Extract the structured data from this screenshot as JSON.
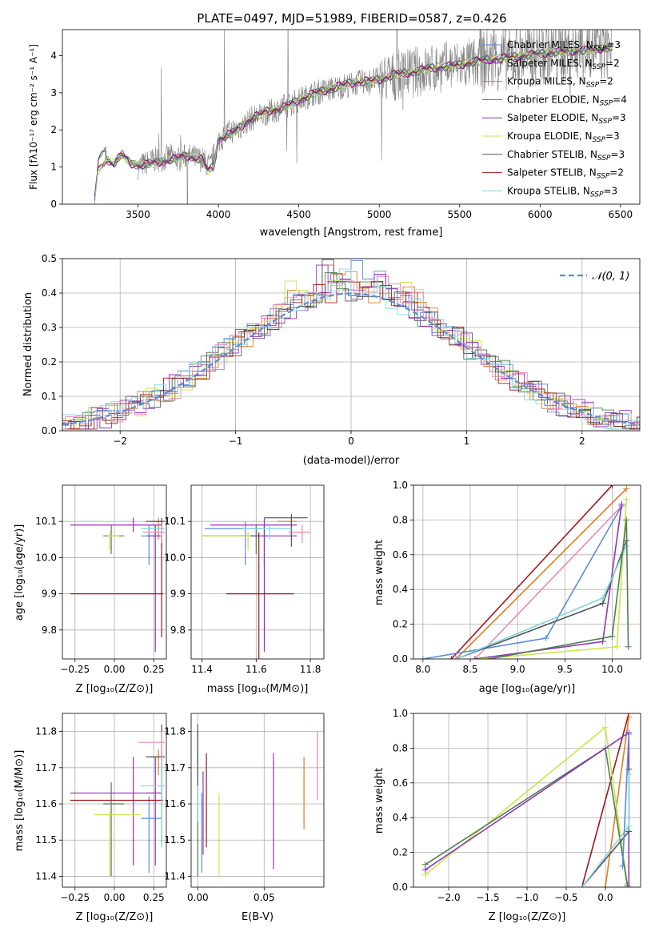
{
  "colors": {
    "chabrier_miles": "#5b8bd8",
    "salpeter_miles": "#9b2db5",
    "kroupa_miles": "#e07b20",
    "chabrier_elodie": "#4f7f4f",
    "salpeter_elodie": "#8e36b8",
    "kroupa_elodie": "#c8e64a",
    "chabrier_stelib": "#555555",
    "salpeter_stelib": "#a0161b",
    "kroupa_stelib": "#7fd5e0",
    "pink": "#e88ab8",
    "spectrum": "#808080",
    "gauss": "#5b8bd8"
  },
  "chart_data": [
    {
      "id": "spectrum",
      "type": "line",
      "title": "PLATE=0497, MJD=51989, FIBERID=0587, z=0.426",
      "xlabel": "wavelength [Angstrom, rest frame]",
      "ylabel": "Flux [f$_\\lambda$10$^{-17}$ erg cm$^{-2}$ s$^{-1}$ A$^{-1}$]",
      "xlim": [
        3030,
        6620
      ],
      "ylim": [
        0,
        4.7
      ],
      "xticks": [
        3500,
        4000,
        4500,
        5000,
        5500,
        6000,
        6500
      ],
      "yticks": [
        0,
        1,
        2,
        3,
        4
      ],
      "grid": false,
      "legend_position": "right",
      "legend": [
        {
          "label": "Chabrier MILES, N",
          "sub": "SSP",
          "tail": "=3",
          "color": "chabrier_miles"
        },
        {
          "label": "Salpeter MILES, N",
          "sub": "SSP",
          "tail": "=2",
          "color": "salpeter_miles"
        },
        {
          "label": "Kroupa MILES, N",
          "sub": "SSP",
          "tail": "=2",
          "color": "kroupa_miles"
        },
        {
          "label": "Chabrier ELODIE, N",
          "sub": "SSP",
          "tail": "=4",
          "color": "chabrier_elodie"
        },
        {
          "label": "Salpeter ELODIE, N",
          "sub": "SSP",
          "tail": "=3",
          "color": "salpeter_elodie"
        },
        {
          "label": "Kroupa ELODIE, N",
          "sub": "SSP",
          "tail": "=3",
          "color": "kroupa_elodie"
        },
        {
          "label": "Chabrier STELIB, N",
          "sub": "SSP",
          "tail": "=3",
          "color": "chabrier_stelib"
        },
        {
          "label": "Salpeter STELIB, N",
          "sub": "SSP",
          "tail": "=2",
          "color": "salpeter_stelib"
        },
        {
          "label": "Kroupa STELIB, N",
          "sub": "SSP",
          "tail": "=3",
          "color": "kroupa_stelib"
        }
      ],
      "model_wave": [
        3230,
        3250,
        3300,
        3350,
        3400,
        3450,
        3500,
        3600,
        3700,
        3800,
        3900,
        3935,
        3970,
        4000,
        4100,
        4200,
        4300,
        4400,
        4500,
        4600,
        4700,
        4800,
        4900,
        5000,
        5100,
        5200,
        5300,
        5400,
        5500,
        5600,
        5700,
        5800,
        5900,
        6000,
        6100,
        6200,
        6300,
        6400,
        6450
      ],
      "model_flux": [
        0.1,
        0.9,
        1.2,
        1.1,
        1.35,
        1.1,
        1.05,
        1.1,
        1.2,
        1.3,
        1.2,
        0.9,
        1.0,
        1.75,
        1.95,
        2.3,
        2.5,
        2.6,
        2.8,
        3.0,
        3.1,
        3.25,
        3.3,
        3.35,
        3.5,
        3.55,
        3.65,
        3.7,
        3.75,
        3.85,
        3.9,
        3.95,
        4.0,
        4.05,
        4.1,
        4.12,
        4.15,
        4.2,
        4.25
      ],
      "data_wave": [
        3500,
        3550,
        3600,
        3650,
        3700,
        3750,
        3800,
        3850,
        3900,
        3950,
        4000,
        4050,
        4100,
        4150,
        4200,
        4300,
        4400,
        4500,
        4600,
        4700,
        4800,
        4900,
        5000,
        5100,
        5200,
        5300,
        5400,
        5500,
        5600,
        5700,
        5800,
        5900,
        6000,
        6100,
        6200,
        6300,
        6400,
        6450
      ],
      "data_flux": [
        1.0,
        1.1,
        1.2,
        1.2,
        1.3,
        1.2,
        1.3,
        1.25,
        1.2,
        1.0,
        1.7,
        1.9,
        2.0,
        2.1,
        2.3,
        2.45,
        2.6,
        2.8,
        3.0,
        3.1,
        3.2,
        3.3,
        3.35,
        3.45,
        3.55,
        3.6,
        3.7,
        3.75,
        3.8,
        3.9,
        3.95,
        4.0,
        4.05,
        4.1,
        4.15,
        4.15,
        4.2,
        4.25
      ]
    },
    {
      "id": "residuals",
      "type": "histogram",
      "xlabel": "(data-model)/error",
      "ylabel": "Normed distribution",
      "xlim": [
        -2.5,
        2.5
      ],
      "ylim": [
        0,
        0.5
      ],
      "xticks": [
        -2,
        -1,
        0,
        1,
        2
      ],
      "yticks": [
        0.0,
        0.1,
        0.2,
        0.3,
        0.4,
        0.5
      ],
      "grid": true,
      "legend_position": "top-right",
      "legend": [
        "N(0,1)"
      ],
      "gauss_curve": {
        "mu": 0,
        "sigma": 1
      }
    },
    {
      "id": "age_vs_Z",
      "type": "errorbar",
      "xlabel": "Z [log10(Z/Zsun)]",
      "ylabel": "age  [log10(age/yr)]",
      "xlim": [
        -0.33,
        0.33
      ],
      "ylim": [
        9.72,
        10.2
      ],
      "xticks": [
        -0.25,
        0.0,
        0.25
      ],
      "yticks": [
        9.8,
        9.9,
        10.0,
        10.1
      ],
      "grid": true
    },
    {
      "id": "age_vs_mass",
      "type": "errorbar",
      "xlabel": "mass [log10(M/Msun)]",
      "ylabel": "",
      "xlim": [
        11.36,
        11.85
      ],
      "ylim": [
        9.72,
        10.2
      ],
      "xticks": [
        11.4,
        11.6,
        11.8
      ],
      "yticks": [
        9.8,
        9.9,
        10.0,
        10.1
      ],
      "grid": true
    },
    {
      "id": "weight_vs_age",
      "type": "line",
      "xlabel": "age  [log10(age/yr)]",
      "ylabel": "mass weight",
      "xlim": [
        7.9,
        10.3
      ],
      "ylim": [
        0,
        1
      ],
      "xticks": [
        8.0,
        8.5,
        9.0,
        9.5,
        10.0
      ],
      "yticks": [
        0.0,
        0.2,
        0.4,
        0.6,
        0.8,
        1.0
      ],
      "grid": true
    },
    {
      "id": "mass_vs_Z",
      "type": "errorbar",
      "xlabel": "Z [log10(Z/Zsun)]",
      "ylabel": "mass [log10(M/Msun)]",
      "xlim": [
        -0.33,
        0.33
      ],
      "ylim": [
        11.37,
        11.85
      ],
      "xticks": [
        -0.25,
        0.0,
        0.25
      ],
      "yticks": [
        11.4,
        11.5,
        11.6,
        11.7,
        11.8
      ],
      "grid": true
    },
    {
      "id": "mass_vs_ebv",
      "type": "errorbar",
      "xlabel": "E(B-V)",
      "ylabel": "",
      "xlim": [
        -0.005,
        0.095
      ],
      "ylim": [
        11.37,
        11.85
      ],
      "xticks": [
        0.0,
        0.05
      ],
      "yticks": [
        11.4,
        11.5,
        11.6,
        11.7,
        11.8
      ],
      "grid": true
    },
    {
      "id": "weight_vs_Z",
      "type": "line",
      "xlabel": "Z [log10(Z/Zsun)]",
      "ylabel": "mass weight",
      "xlim": [
        -2.45,
        0.45
      ],
      "ylim": [
        0,
        1
      ],
      "xticks": [
        -2.0,
        -1.5,
        -1.0,
        -0.5,
        0.0
      ],
      "yticks": [
        0.0,
        0.2,
        0.4,
        0.6,
        0.8,
        1.0
      ],
      "grid": true
    }
  ],
  "series_points": {
    "age_Z": [
      {
        "c": "chabrier_miles",
        "x": 0.22,
        "y": 10.06,
        "xe": [
          0.05,
          0.08
        ],
        "ye": [
          0.08,
          0.03
        ]
      },
      {
        "c": "salpeter_miles",
        "x": 0.12,
        "y": 10.09,
        "xe": [
          0.4,
          0.18
        ],
        "ye": [
          0.02,
          0.02
        ]
      },
      {
        "c": "kroupa_miles",
        "x": 0.28,
        "y": 10.1,
        "xe": [
          0.05,
          0.02
        ],
        "ye": [
          0.05,
          0.01
        ]
      },
      {
        "c": "chabrier_elodie",
        "x": -0.02,
        "y": 10.06,
        "xe": [
          0.05,
          0.08
        ],
        "ye": [
          0.05,
          0.03
        ]
      },
      {
        "c": "salpeter_elodie",
        "x": 0.26,
        "y": 10.06,
        "xe": [
          0.05,
          0.03
        ],
        "ye": [
          0.32,
          0.03
        ]
      },
      {
        "c": "kroupa_elodie",
        "x": -0.03,
        "y": 10.06,
        "xe": [
          0.01,
          0.06
        ],
        "ye": [
          0.04,
          0.01
        ]
      },
      {
        "c": "chabrier_stelib",
        "x": 0.3,
        "y": 10.1,
        "xe": [
          0.1,
          0.02
        ],
        "ye": [
          0.07,
          0.01
        ]
      },
      {
        "c": "salpeter_stelib",
        "x": 0.3,
        "y": 9.9,
        "xe": [
          0.58,
          0.01
        ],
        "ye": [
          0.12,
          0.17
        ]
      },
      {
        "c": "kroupa_stelib",
        "x": 0.3,
        "y": 10.08,
        "xe": [
          0.13,
          0.02
        ],
        "ye": [
          0.03,
          0.01
        ]
      },
      {
        "c": "pink",
        "x": 0.3,
        "y": 10.07,
        "xe": [
          0.12,
          0.02
        ],
        "ye": [
          0.03,
          0.02
        ]
      }
    ],
    "age_mass": [
      {
        "c": "chabrier_miles",
        "x": 11.56,
        "y": 10.08,
        "xe": [
          0.15,
          0.06
        ],
        "ye": [
          0.1,
          0.02
        ]
      },
      {
        "c": "salpeter_miles",
        "x": 11.63,
        "y": 10.09,
        "xe": [
          0.2,
          0.12
        ],
        "ye": [
          0.35,
          0.02
        ]
      },
      {
        "c": "kroupa_miles",
        "x": 11.73,
        "y": 10.1,
        "xe": [
          0.05,
          0.02
        ],
        "ye": [
          0.05,
          0.01
        ]
      },
      {
        "c": "chabrier_elodie",
        "x": 11.6,
        "y": 10.06,
        "xe": [
          0.2,
          0.04
        ],
        "ye": [
          0.05,
          0.03
        ]
      },
      {
        "c": "salpeter_elodie",
        "x": 11.63,
        "y": 10.06,
        "xe": [
          0.1,
          0.12
        ],
        "ye": [
          0.08,
          0.03
        ]
      },
      {
        "c": "kroupa_elodie",
        "x": 11.57,
        "y": 10.06,
        "xe": [
          0.17,
          0.01
        ],
        "ye": [
          0.04,
          0.01
        ]
      },
      {
        "c": "chabrier_stelib",
        "x": 11.73,
        "y": 10.11,
        "xe": [
          0.1,
          0.06
        ],
        "ye": [
          0.08,
          0.01
        ]
      },
      {
        "c": "salpeter_stelib",
        "x": 11.61,
        "y": 9.9,
        "xe": [
          0.12,
          0.13
        ],
        "ye": [
          0.25,
          0.17
        ]
      },
      {
        "c": "kroupa_stelib",
        "x": 11.65,
        "y": 10.08,
        "xe": [
          0.1,
          0.08
        ],
        "ye": [
          0.03,
          0.01
        ]
      },
      {
        "c": "pink",
        "x": 11.77,
        "y": 10.07,
        "xe": [
          0.05,
          0.03
        ],
        "ye": [
          0.03,
          0.02
        ]
      }
    ],
    "weight_age": [
      {
        "c": "salpeter_stelib",
        "pts": [
          [
            8.3,
            0
          ],
          [
            10.0,
            1.0
          ]
        ]
      },
      {
        "c": "kroupa_miles",
        "pts": [
          [
            8.35,
            0
          ],
          [
            10.15,
            0.98
          ]
        ]
      },
      {
        "c": "pink",
        "pts": [
          [
            8.55,
            0
          ],
          [
            10.1,
            0.88
          ]
        ]
      },
      {
        "c": "chabrier_miles",
        "pts": [
          [
            8.0,
            0
          ],
          [
            9.3,
            0.12
          ],
          [
            10.1,
            0.88
          ]
        ]
      },
      {
        "c": "salpeter_elodie",
        "pts": [
          [
            8.55,
            0
          ],
          [
            9.9,
            0.1
          ],
          [
            10.1,
            0.89
          ]
        ]
      },
      {
        "c": "kroupa_elodie",
        "pts": [
          [
            8.6,
            0
          ],
          [
            10.05,
            0.07
          ],
          [
            10.15,
            0.92
          ]
        ]
      },
      {
        "c": "chabrier_stelib",
        "pts": [
          [
            8.35,
            0
          ],
          [
            9.9,
            0.32
          ],
          [
            10.15,
            0.68
          ]
        ]
      },
      {
        "c": "kroupa_stelib",
        "pts": [
          [
            8.35,
            0
          ],
          [
            9.9,
            0.35
          ],
          [
            10.15,
            0.65
          ]
        ]
      },
      {
        "c": "chabrier_elodie",
        "pts": [
          [
            8.7,
            0
          ],
          [
            10.0,
            0.13
          ],
          [
            10.15,
            0.8
          ],
          [
            10.17,
            0.07
          ]
        ]
      }
    ],
    "mass_Z": [
      {
        "c": "chabrier_miles",
        "x": 0.22,
        "y": 11.56,
        "xe": [
          0.05,
          0.08
        ],
        "ye": [
          0.15,
          0.06
        ]
      },
      {
        "c": "salpeter_miles",
        "x": 0.12,
        "y": 11.63,
        "xe": [
          0.4,
          0.18
        ],
        "ye": [
          0.2,
          0.1
        ]
      },
      {
        "c": "kroupa_miles",
        "x": 0.28,
        "y": 11.73,
        "xe": [
          0.05,
          0.02
        ],
        "ye": [
          0.05,
          0.02
        ]
      },
      {
        "c": "chabrier_elodie",
        "x": -0.02,
        "y": 11.6,
        "xe": [
          0.05,
          0.08
        ],
        "ye": [
          0.2,
          0.06
        ]
      },
      {
        "c": "salpeter_elodie",
        "x": 0.26,
        "y": 11.63,
        "xe": [
          0.05,
          0.03
        ],
        "ye": [
          0.2,
          0.1
        ]
      },
      {
        "c": "kroupa_elodie",
        "x": -0.03,
        "y": 11.57,
        "xe": [
          0.1,
          0.2
        ],
        "ye": [
          0.17,
          0.01
        ]
      },
      {
        "c": "chabrier_stelib",
        "x": 0.3,
        "y": 11.73,
        "xe": [
          0.1,
          0.02
        ],
        "ye": [
          0.1,
          0.09
        ]
      },
      {
        "c": "salpeter_stelib",
        "x": 0.3,
        "y": 11.61,
        "xe": [
          0.58,
          0.01
        ],
        "ye": [
          0.12,
          0.13
        ]
      },
      {
        "c": "kroupa_stelib",
        "x": 0.3,
        "y": 11.65,
        "xe": [
          0.13,
          0.02
        ],
        "ye": [
          0.17,
          0.1
        ]
      },
      {
        "c": "pink",
        "x": 0.3,
        "y": 11.77,
        "xe": [
          0.15,
          0.02
        ],
        "ye": [
          0.05,
          0.03
        ]
      }
    ],
    "mass_ebv": [
      {
        "c": "chabrier_miles",
        "x": 0.003,
        "ye": [
          11.41,
          11.63
        ]
      },
      {
        "c": "salpeter_elodie",
        "x": 0.004,
        "ye": [
          11.46,
          11.69
        ]
      },
      {
        "c": "salpeter_stelib",
        "x": 0.0065,
        "ye": [
          11.48,
          11.74
        ]
      },
      {
        "c": "kroupa_elodie",
        "x": 0.016,
        "ye": [
          11.4,
          11.63
        ]
      },
      {
        "c": "chabrier_elodie",
        "x": 0.0,
        "ye": [
          11.4,
          11.8
        ]
      },
      {
        "c": "kroupa_stelib",
        "x": 0.0,
        "ye": [
          11.55,
          11.68
        ]
      },
      {
        "c": "chabrier_stelib",
        "x": 0.0,
        "ye": [
          11.65,
          11.82
        ]
      },
      {
        "c": "salpeter_miles",
        "x": 0.057,
        "ye": [
          11.42,
          11.74
        ]
      },
      {
        "c": "kroupa_miles",
        "x": 0.08,
        "ye": [
          11.53,
          11.73
        ]
      },
      {
        "c": "pink",
        "x": 0.09,
        "ye": [
          11.61,
          11.8
        ]
      }
    ],
    "weight_Z": [
      {
        "c": "salpeter_stelib",
        "pts": [
          [
            -0.3,
            0
          ],
          [
            0.3,
            1.0
          ]
        ]
      },
      {
        "c": "kroupa_miles",
        "pts": [
          [
            0.0,
            0
          ],
          [
            0.3,
            0.98
          ]
        ]
      },
      {
        "c": "kroupa_elodie",
        "pts": [
          [
            -2.3,
            0.07
          ],
          [
            0.0,
            0.92
          ],
          [
            0.28,
            0.02
          ]
        ]
      },
      {
        "c": "chabrier_elodie",
        "pts": [
          [
            -2.3,
            0.13
          ],
          [
            0.0,
            0.8
          ],
          [
            0.28,
            0.01
          ]
        ]
      },
      {
        "c": "salpeter_elodie",
        "pts": [
          [
            -2.3,
            0.1
          ],
          [
            0.3,
            0.89
          ],
          [
            0.3,
            0.0
          ]
        ]
      },
      {
        "c": "chabrier_stelib",
        "pts": [
          [
            -0.3,
            0
          ],
          [
            0.3,
            0.32
          ],
          [
            0.3,
            0.68
          ]
        ]
      },
      {
        "c": "kroupa_stelib",
        "pts": [
          [
            -0.3,
            0
          ],
          [
            0.3,
            0.35
          ],
          [
            0.3,
            0.65
          ]
        ]
      },
      {
        "c": "chabrier_miles",
        "pts": [
          [
            0.22,
            0.12
          ],
          [
            0.3,
            0.88
          ]
        ]
      }
    ]
  }
}
